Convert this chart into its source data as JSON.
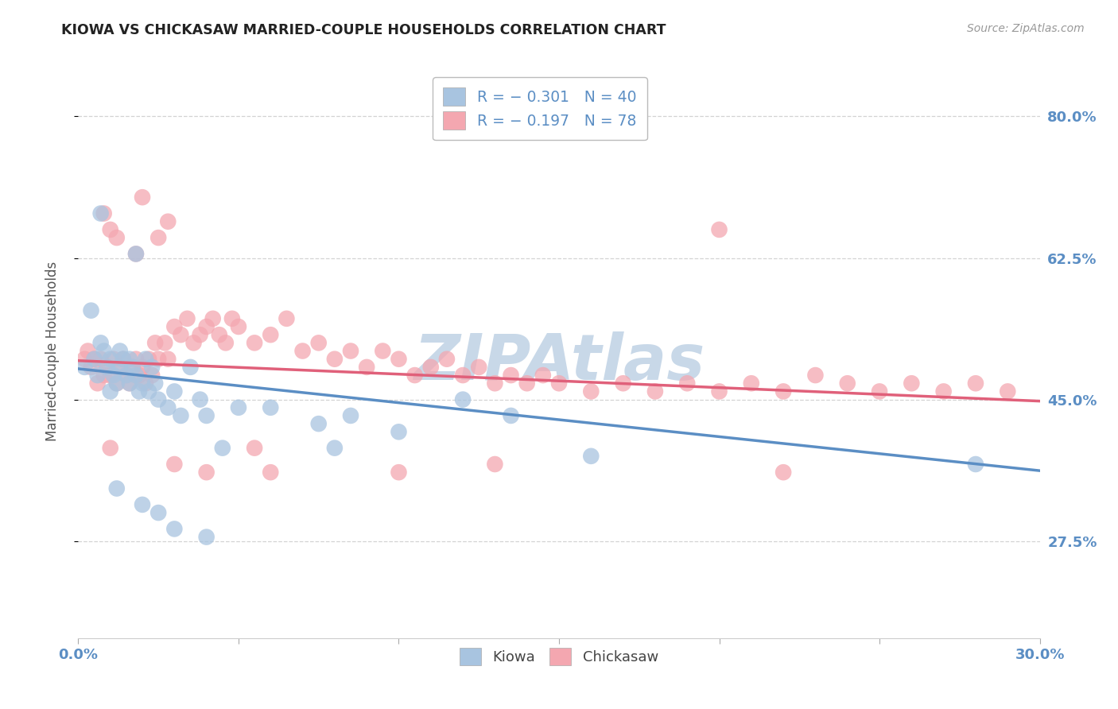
{
  "title": "KIOWA VS CHICKASAW MARRIED-COUPLE HOUSEHOLDS CORRELATION CHART",
  "source": "Source: ZipAtlas.com",
  "ylabel": "Married-couple Households",
  "kiowa_color": "#a8c4e0",
  "chickasaw_color": "#f4a7b0",
  "line_kiowa_color": "#5b8ec4",
  "line_chickasaw_color": "#e0607a",
  "watermark": "ZIPAtlas",
  "watermark_color": "#d0dce8",
  "background_color": "#ffffff",
  "grid_color": "#c8c8c8",
  "title_color": "#222222",
  "axis_label_color": "#5b8ec4",
  "x_min": 0.0,
  "x_max": 0.3,
  "y_min": 0.155,
  "y_max": 0.865,
  "y_ticks": [
    0.275,
    0.45,
    0.625,
    0.8
  ],
  "y_tick_labels": [
    "27.5%",
    "45.0%",
    "62.5%",
    "80.0%"
  ],
  "x_ticks": [
    0.0,
    0.05,
    0.1,
    0.15,
    0.2,
    0.25,
    0.3
  ],
  "x_tick_labels_show": [
    "0.0%",
    "",
    "",
    "",
    "",
    "",
    "30.0%"
  ],
  "kiowa_scatter": [
    [
      0.002,
      0.49
    ],
    [
      0.004,
      0.56
    ],
    [
      0.005,
      0.5
    ],
    [
      0.006,
      0.48
    ],
    [
      0.007,
      0.52
    ],
    [
      0.008,
      0.51
    ],
    [
      0.009,
      0.49
    ],
    [
      0.01,
      0.5
    ],
    [
      0.01,
      0.46
    ],
    [
      0.011,
      0.48
    ],
    [
      0.012,
      0.47
    ],
    [
      0.013,
      0.51
    ],
    [
      0.013,
      0.49
    ],
    [
      0.014,
      0.5
    ],
    [
      0.015,
      0.48
    ],
    [
      0.016,
      0.47
    ],
    [
      0.016,
      0.5
    ],
    [
      0.017,
      0.49
    ],
    [
      0.018,
      0.48
    ],
    [
      0.019,
      0.46
    ],
    [
      0.02,
      0.47
    ],
    [
      0.021,
      0.5
    ],
    [
      0.022,
      0.46
    ],
    [
      0.023,
      0.49
    ],
    [
      0.024,
      0.47
    ],
    [
      0.025,
      0.45
    ],
    [
      0.028,
      0.44
    ],
    [
      0.03,
      0.46
    ],
    [
      0.032,
      0.43
    ],
    [
      0.035,
      0.49
    ],
    [
      0.038,
      0.45
    ],
    [
      0.04,
      0.43
    ],
    [
      0.045,
      0.39
    ],
    [
      0.05,
      0.44
    ],
    [
      0.06,
      0.44
    ],
    [
      0.075,
      0.42
    ],
    [
      0.085,
      0.43
    ],
    [
      0.12,
      0.45
    ],
    [
      0.135,
      0.43
    ],
    [
      0.28,
      0.37
    ],
    [
      0.007,
      0.68
    ],
    [
      0.018,
      0.63
    ],
    [
      0.012,
      0.34
    ],
    [
      0.02,
      0.32
    ],
    [
      0.025,
      0.31
    ],
    [
      0.03,
      0.29
    ],
    [
      0.04,
      0.28
    ],
    [
      0.08,
      0.39
    ],
    [
      0.1,
      0.41
    ],
    [
      0.16,
      0.38
    ]
  ],
  "chickasaw_scatter": [
    [
      0.002,
      0.5
    ],
    [
      0.003,
      0.51
    ],
    [
      0.004,
      0.49
    ],
    [
      0.005,
      0.5
    ],
    [
      0.006,
      0.47
    ],
    [
      0.007,
      0.5
    ],
    [
      0.008,
      0.48
    ],
    [
      0.009,
      0.49
    ],
    [
      0.01,
      0.48
    ],
    [
      0.011,
      0.5
    ],
    [
      0.012,
      0.47
    ],
    [
      0.013,
      0.49
    ],
    [
      0.014,
      0.5
    ],
    [
      0.015,
      0.48
    ],
    [
      0.016,
      0.47
    ],
    [
      0.017,
      0.49
    ],
    [
      0.018,
      0.5
    ],
    [
      0.019,
      0.48
    ],
    [
      0.02,
      0.49
    ],
    [
      0.021,
      0.47
    ],
    [
      0.022,
      0.5
    ],
    [
      0.023,
      0.48
    ],
    [
      0.024,
      0.52
    ],
    [
      0.025,
      0.5
    ],
    [
      0.027,
      0.52
    ],
    [
      0.028,
      0.5
    ],
    [
      0.03,
      0.54
    ],
    [
      0.032,
      0.53
    ],
    [
      0.034,
      0.55
    ],
    [
      0.036,
      0.52
    ],
    [
      0.038,
      0.53
    ],
    [
      0.04,
      0.54
    ],
    [
      0.042,
      0.55
    ],
    [
      0.044,
      0.53
    ],
    [
      0.046,
      0.52
    ],
    [
      0.048,
      0.55
    ],
    [
      0.05,
      0.54
    ],
    [
      0.055,
      0.52
    ],
    [
      0.06,
      0.53
    ],
    [
      0.065,
      0.55
    ],
    [
      0.07,
      0.51
    ],
    [
      0.075,
      0.52
    ],
    [
      0.08,
      0.5
    ],
    [
      0.085,
      0.51
    ],
    [
      0.09,
      0.49
    ],
    [
      0.095,
      0.51
    ],
    [
      0.1,
      0.5
    ],
    [
      0.105,
      0.48
    ],
    [
      0.11,
      0.49
    ],
    [
      0.115,
      0.5
    ],
    [
      0.12,
      0.48
    ],
    [
      0.125,
      0.49
    ],
    [
      0.13,
      0.47
    ],
    [
      0.135,
      0.48
    ],
    [
      0.14,
      0.47
    ],
    [
      0.145,
      0.48
    ],
    [
      0.15,
      0.47
    ],
    [
      0.16,
      0.46
    ],
    [
      0.17,
      0.47
    ],
    [
      0.18,
      0.46
    ],
    [
      0.19,
      0.47
    ],
    [
      0.2,
      0.46
    ],
    [
      0.21,
      0.47
    ],
    [
      0.22,
      0.46
    ],
    [
      0.23,
      0.48
    ],
    [
      0.24,
      0.47
    ],
    [
      0.25,
      0.46
    ],
    [
      0.26,
      0.47
    ],
    [
      0.27,
      0.46
    ],
    [
      0.28,
      0.47
    ],
    [
      0.29,
      0.46
    ],
    [
      0.008,
      0.68
    ],
    [
      0.01,
      0.66
    ],
    [
      0.012,
      0.65
    ],
    [
      0.018,
      0.63
    ],
    [
      0.025,
      0.65
    ],
    [
      0.02,
      0.7
    ],
    [
      0.028,
      0.67
    ],
    [
      0.2,
      0.66
    ],
    [
      0.01,
      0.39
    ],
    [
      0.03,
      0.37
    ],
    [
      0.04,
      0.36
    ],
    [
      0.055,
      0.39
    ],
    [
      0.06,
      0.36
    ],
    [
      0.1,
      0.36
    ],
    [
      0.13,
      0.37
    ],
    [
      0.22,
      0.36
    ]
  ],
  "kiowa_line_x": [
    0.0,
    0.3
  ],
  "kiowa_line_y": [
    0.488,
    0.362
  ],
  "chickasaw_line_x": [
    0.0,
    0.3
  ],
  "chickasaw_line_y": [
    0.498,
    0.448
  ]
}
